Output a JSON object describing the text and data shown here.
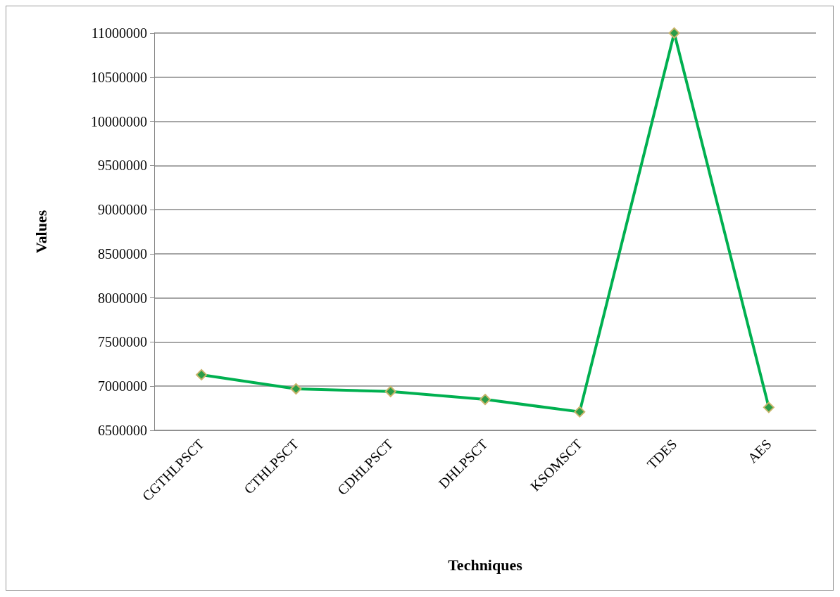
{
  "chart_data": {
    "type": "line",
    "xlabel": "Techniques",
    "ylabel": "Values",
    "categories": [
      "CGTHLPSCT",
      "CTHLPSCT",
      "CDHLPSCT",
      "DHLPSCT",
      "KSOMSCT",
      "TDES",
      "AES"
    ],
    "series": [
      {
        "color": "#00b050",
        "values": [
          7130000,
          6970000,
          6940000,
          6850000,
          6710000,
          11000000,
          6760000
        ]
      }
    ],
    "ylim": [
      6500000,
      11000000
    ],
    "yticks": [
      6500000,
      7000000,
      7500000,
      8000000,
      8500000,
      9000000,
      9500000,
      10000000,
      10500000,
      11000000
    ],
    "grid": "y",
    "marker": "diamond",
    "line_style": "solid"
  }
}
